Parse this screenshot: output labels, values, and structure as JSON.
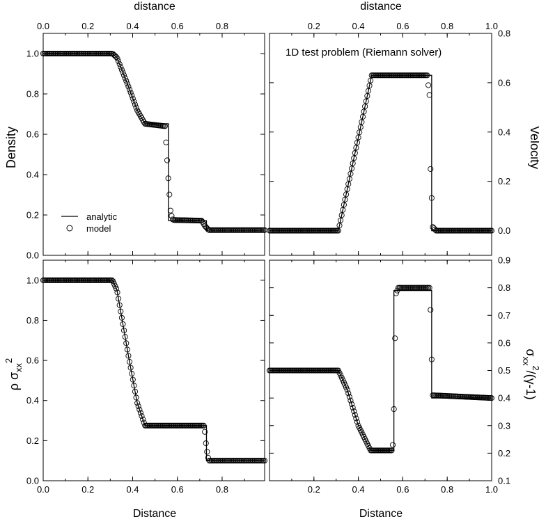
{
  "figure": {
    "top_label_left": "distance",
    "top_label_right": "distance",
    "bottom_label_left": "Distance",
    "bottom_label_right": "Distance",
    "annotation": "1D test problem (Riemann solver)",
    "legend": {
      "analytic": "analytic",
      "model": "model"
    }
  },
  "chart_data": [
    {
      "type": "line",
      "panel": "top-left",
      "ylabel": "Density",
      "xlabel": "distance",
      "xlim": [
        0,
        0.99
      ],
      "ylim": [
        0,
        1.1
      ],
      "xticks": [
        "0.0",
        "0.2",
        "0.4",
        "0.6",
        "0.8"
      ],
      "yticks": [
        "0.0",
        "0.2",
        "0.4",
        "0.6",
        "0.8",
        "1.0"
      ],
      "legend_position": "bottom-left",
      "series": [
        {
          "name": "analytic",
          "style": "solid-line",
          "x": [
            0,
            0.31,
            0.33,
            0.38,
            0.42,
            0.455,
            0.56,
            0.56,
            0.73,
            0.73,
            0.99
          ],
          "y": [
            1.0,
            1.0,
            0.98,
            0.84,
            0.72,
            0.652,
            0.652,
            0.172,
            0.172,
            0.125,
            0.125
          ]
        },
        {
          "name": "model",
          "style": "open-circles",
          "x": [
            0,
            0.31,
            0.33,
            0.38,
            0.42,
            0.455,
            0.545,
            0.56,
            0.57,
            0.58,
            0.71,
            0.72,
            0.74,
            0.99
          ],
          "y": [
            1.0,
            1.0,
            0.98,
            0.84,
            0.72,
            0.652,
            0.64,
            0.37,
            0.21,
            0.175,
            0.172,
            0.15,
            0.125,
            0.125
          ]
        }
      ]
    },
    {
      "type": "line",
      "panel": "top-right",
      "ylabel": "Velocity",
      "xlabel": "distance",
      "xlim": [
        0,
        1.0
      ],
      "ylim": [
        -0.1,
        0.8
      ],
      "xticks": [
        "0.2",
        "0.4",
        "0.6",
        "0.8",
        "1.0"
      ],
      "yticks": [
        "0.0",
        "0.2",
        "0.4",
        "0.6",
        "0.8"
      ],
      "series": [
        {
          "name": "analytic",
          "style": "solid-line",
          "x": [
            0,
            0.31,
            0.46,
            0.73,
            0.73,
            1.0
          ],
          "y": [
            0.0,
            0.0,
            0.63,
            0.63,
            0.0,
            0.0
          ]
        },
        {
          "name": "model",
          "style": "open-circles",
          "x": [
            0,
            0.31,
            0.46,
            0.71,
            0.72,
            0.725,
            0.735,
            0.75,
            1.0
          ],
          "y": [
            0.0,
            0.0,
            0.63,
            0.63,
            0.55,
            0.25,
            0.015,
            0.0,
            0.0
          ]
        }
      ]
    },
    {
      "type": "line",
      "panel": "bottom-left",
      "ylabel": "ρ σxx²",
      "xlabel": "Distance",
      "xlim": [
        0,
        0.99
      ],
      "ylim": [
        0,
        1.1
      ],
      "xticks": [
        "0.0",
        "0.2",
        "0.4",
        "0.6",
        "0.8"
      ],
      "yticks": [
        "0.0",
        "0.2",
        "0.4",
        "0.6",
        "0.8",
        "1.0"
      ],
      "series": [
        {
          "name": "analytic",
          "style": "solid-line",
          "x": [
            0,
            0.31,
            0.33,
            0.38,
            0.42,
            0.455,
            0.73,
            0.73,
            0.99
          ],
          "y": [
            1.0,
            1.0,
            0.95,
            0.63,
            0.39,
            0.275,
            0.275,
            0.1,
            0.1
          ]
        },
        {
          "name": "model",
          "style": "open-circles",
          "x": [
            0,
            0.31,
            0.33,
            0.38,
            0.42,
            0.455,
            0.72,
            0.73,
            0.74,
            0.99
          ],
          "y": [
            1.0,
            1.0,
            0.95,
            0.63,
            0.39,
            0.275,
            0.275,
            0.16,
            0.1,
            0.1
          ]
        }
      ]
    },
    {
      "type": "line",
      "panel": "bottom-right",
      "ylabel": "σxx²/(γ-1)",
      "xlabel": "Distance",
      "xlim": [
        0,
        1.0
      ],
      "ylim": [
        0.1,
        0.9
      ],
      "xticks": [
        "0.2",
        "0.4",
        "0.6",
        "0.8",
        "1.0"
      ],
      "yticks": [
        "0.1",
        "0.2",
        "0.3",
        "0.4",
        "0.5",
        "0.6",
        "0.7",
        "0.8",
        "0.9"
      ],
      "series": [
        {
          "name": "analytic",
          "style": "solid-line",
          "x": [
            0,
            0.31,
            0.35,
            0.4,
            0.455,
            0.56,
            0.56,
            0.73,
            0.73,
            1.0
          ],
          "y": [
            0.5,
            0.5,
            0.43,
            0.3,
            0.21,
            0.21,
            0.79,
            0.79,
            0.4,
            0.4
          ]
        },
        {
          "name": "model",
          "style": "open-circles",
          "x": [
            0,
            0.31,
            0.35,
            0.4,
            0.455,
            0.55,
            0.555,
            0.56,
            0.563,
            0.566,
            0.57,
            0.58,
            0.72,
            0.725,
            0.73,
            0.735,
            1.0
          ],
          "y": [
            0.5,
            0.5,
            0.43,
            0.3,
            0.21,
            0.21,
            0.23,
            0.36,
            0.53,
            0.66,
            0.78,
            0.8,
            0.8,
            0.72,
            0.54,
            0.41,
            0.4
          ]
        }
      ]
    }
  ]
}
